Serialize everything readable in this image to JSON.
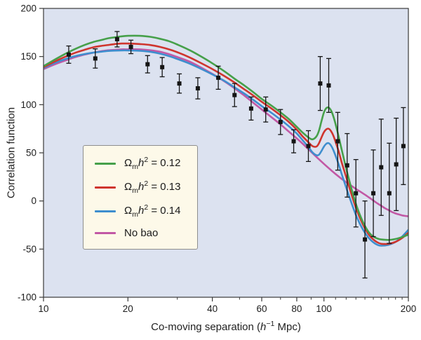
{
  "colors": {
    "plot_bg": "#dce2f0",
    "frame": "#3a3a3a",
    "tick_label": "#1c1c1c",
    "legend_bg": "#fdf9e9",
    "legend_border": "#8e8e8e",
    "marker": "#151515"
  },
  "legend": {
    "items": [
      {
        "omega": "Ω",
        "sub": "m",
        "h": "h",
        "sup": "2",
        "rest": " = 0.12"
      },
      {
        "omega": "Ω",
        "sub": "m",
        "h": "h",
        "sup": "2",
        "rest": " = 0.13"
      },
      {
        "omega": "Ω",
        "sub": "m",
        "h": "h",
        "sup": "2",
        "rest": " = 0.14"
      },
      {
        "label": "No bao"
      }
    ]
  },
  "chart_data": {
    "type": "line",
    "title": "",
    "ylabel": "Correlation function",
    "xlabel_parts": {
      "pre": "Co-moving separation (",
      "h": "h",
      "sup": "−1",
      "post": " Mpc)"
    },
    "x_scale": "log",
    "xlim": [
      10,
      200
    ],
    "ylim": [
      -100,
      200
    ],
    "x_major_ticks": [
      10,
      20,
      40,
      60,
      80,
      100,
      200
    ],
    "x_minor_ticks": [
      30,
      50,
      70,
      90,
      110,
      120,
      130,
      140,
      150,
      160,
      170,
      180,
      190
    ],
    "y_ticks": [
      -100,
      -50,
      0,
      50,
      100,
      150,
      200
    ],
    "grid": false,
    "legend_position": "center-left",
    "series": [
      {
        "name": "omega_mh2_012",
        "color": "#46a04a",
        "points": [
          [
            10,
            140
          ],
          [
            11,
            147
          ],
          [
            12,
            153
          ],
          [
            13,
            158
          ],
          [
            14,
            162
          ],
          [
            15,
            165
          ],
          [
            16,
            167
          ],
          [
            17,
            169
          ],
          [
            18,
            170
          ],
          [
            19,
            171
          ],
          [
            20,
            171.5
          ],
          [
            22,
            171.5
          ],
          [
            24,
            170.5
          ],
          [
            26,
            168.5
          ],
          [
            28,
            166
          ],
          [
            30,
            162.5
          ],
          [
            33,
            157
          ],
          [
            36,
            151
          ],
          [
            40,
            143
          ],
          [
            44,
            135
          ],
          [
            48,
            127
          ],
          [
            52,
            120
          ],
          [
            56,
            113
          ],
          [
            60,
            106
          ],
          [
            65,
            99
          ],
          [
            70,
            92
          ],
          [
            75,
            85
          ],
          [
            80,
            77
          ],
          [
            84,
            71
          ],
          [
            88,
            66
          ],
          [
            91,
            64
          ],
          [
            94,
            67
          ],
          [
            96,
            73
          ],
          [
            98,
            83
          ],
          [
            100,
            92
          ],
          [
            102,
            96.5
          ],
          [
            104,
            97
          ],
          [
            106,
            94
          ],
          [
            108,
            88
          ],
          [
            110,
            80
          ],
          [
            113,
            66
          ],
          [
            116,
            52
          ],
          [
            120,
            34
          ],
          [
            125,
            14
          ],
          [
            130,
            -3
          ],
          [
            135,
            -16
          ],
          [
            140,
            -26
          ],
          [
            145,
            -33
          ],
          [
            150,
            -37
          ],
          [
            155,
            -39
          ],
          [
            160,
            -40
          ],
          [
            170,
            -40.5
          ],
          [
            180,
            -39.5
          ],
          [
            190,
            -37.5
          ],
          [
            200,
            -35
          ]
        ]
      },
      {
        "name": "omega_mh2_013",
        "color": "#cf352e",
        "points": [
          [
            10,
            139
          ],
          [
            11,
            145
          ],
          [
            12,
            150
          ],
          [
            13,
            154
          ],
          [
            14,
            157
          ],
          [
            15,
            159.5
          ],
          [
            16,
            161
          ],
          [
            17,
            162
          ],
          [
            18,
            163
          ],
          [
            19,
            163.5
          ],
          [
            20,
            163.5
          ],
          [
            22,
            163
          ],
          [
            24,
            162
          ],
          [
            26,
            160
          ],
          [
            28,
            157.5
          ],
          [
            30,
            154.5
          ],
          [
            33,
            149.5
          ],
          [
            36,
            144
          ],
          [
            40,
            137
          ],
          [
            44,
            130
          ],
          [
            48,
            123
          ],
          [
            52,
            116
          ],
          [
            56,
            109.5
          ],
          [
            60,
            103
          ],
          [
            65,
            96
          ],
          [
            70,
            89
          ],
          [
            75,
            82
          ],
          [
            80,
            74
          ],
          [
            84,
            67
          ],
          [
            88,
            61
          ],
          [
            91,
            57
          ],
          [
            94,
            56.5
          ],
          [
            96,
            60
          ],
          [
            98,
            66
          ],
          [
            100,
            71.5
          ],
          [
            102,
            74.5
          ],
          [
            104,
            75
          ],
          [
            106,
            72.5
          ],
          [
            108,
            68
          ],
          [
            110,
            61.5
          ],
          [
            113,
            51
          ],
          [
            116,
            39
          ],
          [
            120,
            25
          ],
          [
            125,
            8
          ],
          [
            130,
            -7
          ],
          [
            135,
            -19
          ],
          [
            140,
            -28.5
          ],
          [
            145,
            -35.5
          ],
          [
            150,
            -40
          ],
          [
            155,
            -43
          ],
          [
            160,
            -44.5
          ],
          [
            170,
            -44.5
          ],
          [
            180,
            -42.5
          ],
          [
            190,
            -38.5
          ],
          [
            200,
            -33
          ]
        ]
      },
      {
        "name": "omega_mh2_014",
        "color": "#3e8ece",
        "points": [
          [
            10,
            138
          ],
          [
            11,
            143.5
          ],
          [
            12,
            147.5
          ],
          [
            13,
            150.5
          ],
          [
            14,
            152.5
          ],
          [
            15,
            154
          ],
          [
            16,
            155
          ],
          [
            17,
            155.8
          ],
          [
            18,
            156.2
          ],
          [
            19,
            156.4
          ],
          [
            20,
            156.4
          ],
          [
            22,
            156
          ],
          [
            24,
            155
          ],
          [
            26,
            153
          ],
          [
            28,
            150.5
          ],
          [
            30,
            147.5
          ],
          [
            33,
            143
          ],
          [
            36,
            138
          ],
          [
            40,
            131.5
          ],
          [
            44,
            125
          ],
          [
            48,
            118
          ],
          [
            52,
            111.5
          ],
          [
            56,
            105
          ],
          [
            60,
            98.5
          ],
          [
            65,
            91.5
          ],
          [
            70,
            84.5
          ],
          [
            75,
            77.5
          ],
          [
            80,
            70
          ],
          [
            84,
            63
          ],
          [
            88,
            56
          ],
          [
            91,
            50.5
          ],
          [
            94,
            47.5
          ],
          [
            96,
            48
          ],
          [
            98,
            52
          ],
          [
            100,
            56.5
          ],
          [
            102,
            59.5
          ],
          [
            104,
            60
          ],
          [
            106,
            57.5
          ],
          [
            108,
            53
          ],
          [
            110,
            47
          ],
          [
            113,
            37.5
          ],
          [
            116,
            27
          ],
          [
            120,
            14
          ],
          [
            125,
            -1
          ],
          [
            130,
            -14.5
          ],
          [
            135,
            -25
          ],
          [
            140,
            -33
          ],
          [
            145,
            -39
          ],
          [
            150,
            -43
          ],
          [
            155,
            -45.5
          ],
          [
            160,
            -46.5
          ],
          [
            170,
            -45.5
          ],
          [
            180,
            -42.5
          ],
          [
            190,
            -37
          ],
          [
            200,
            -30
          ]
        ]
      },
      {
        "name": "no_bao",
        "color": "#c258a5",
        "points": [
          [
            10,
            137
          ],
          [
            11,
            142
          ],
          [
            12,
            146
          ],
          [
            13,
            149.5
          ],
          [
            14,
            152
          ],
          [
            15,
            154
          ],
          [
            16,
            155.5
          ],
          [
            17,
            156.5
          ],
          [
            18,
            157
          ],
          [
            19,
            157.5
          ],
          [
            20,
            157.5
          ],
          [
            22,
            157.5
          ],
          [
            24,
            156.5
          ],
          [
            26,
            155
          ],
          [
            28,
            152.5
          ],
          [
            30,
            149.5
          ],
          [
            33,
            145
          ],
          [
            36,
            139.5
          ],
          [
            40,
            132
          ],
          [
            44,
            124.5
          ],
          [
            48,
            117
          ],
          [
            52,
            109.5
          ],
          [
            56,
            102
          ],
          [
            60,
            95
          ],
          [
            65,
            87
          ],
          [
            70,
            79.5
          ],
          [
            75,
            72
          ],
          [
            80,
            65
          ],
          [
            85,
            58
          ],
          [
            90,
            51
          ],
          [
            95,
            44.5
          ],
          [
            100,
            38.5
          ],
          [
            105,
            33
          ],
          [
            110,
            28
          ],
          [
            115,
            23.5
          ],
          [
            120,
            19.5
          ],
          [
            125,
            16
          ],
          [
            130,
            12.5
          ],
          [
            135,
            9.5
          ],
          [
            140,
            6.5
          ],
          [
            145,
            3.5
          ],
          [
            150,
            0.5
          ],
          [
            155,
            -2.5
          ],
          [
            160,
            -5
          ],
          [
            165,
            -7.5
          ],
          [
            170,
            -9.5
          ],
          [
            175,
            -11.5
          ],
          [
            180,
            -13
          ],
          [
            185,
            -14
          ],
          [
            190,
            -15
          ],
          [
            195,
            -15.5
          ],
          [
            200,
            -16
          ]
        ]
      }
    ],
    "data_points": {
      "marker": "square",
      "color": "#151515",
      "format": "[x, y, yerr]",
      "points": [
        [
          12.3,
          152,
          9
        ],
        [
          15.3,
          148,
          10
        ],
        [
          18.3,
          168,
          8
        ],
        [
          20.5,
          160,
          7
        ],
        [
          23.5,
          142,
          9
        ],
        [
          26.5,
          139,
          10
        ],
        [
          30.5,
          122,
          10
        ],
        [
          35.5,
          117,
          11
        ],
        [
          42,
          128,
          12
        ],
        [
          48,
          110,
          12
        ],
        [
          55,
          96,
          12
        ],
        [
          62,
          95,
          13
        ],
        [
          70,
          82,
          13
        ],
        [
          78,
          62,
          12
        ],
        [
          88,
          57,
          16
        ],
        [
          97,
          122,
          28
        ],
        [
          104,
          120,
          28
        ],
        [
          112,
          62,
          30
        ],
        [
          121,
          37,
          33
        ],
        [
          130,
          8,
          35
        ],
        [
          140,
          -40,
          40
        ],
        [
          150,
          8,
          45
        ],
        [
          160,
          35,
          50
        ],
        [
          171,
          8,
          52
        ],
        [
          181,
          38,
          48
        ],
        [
          192,
          57,
          40
        ]
      ]
    }
  }
}
